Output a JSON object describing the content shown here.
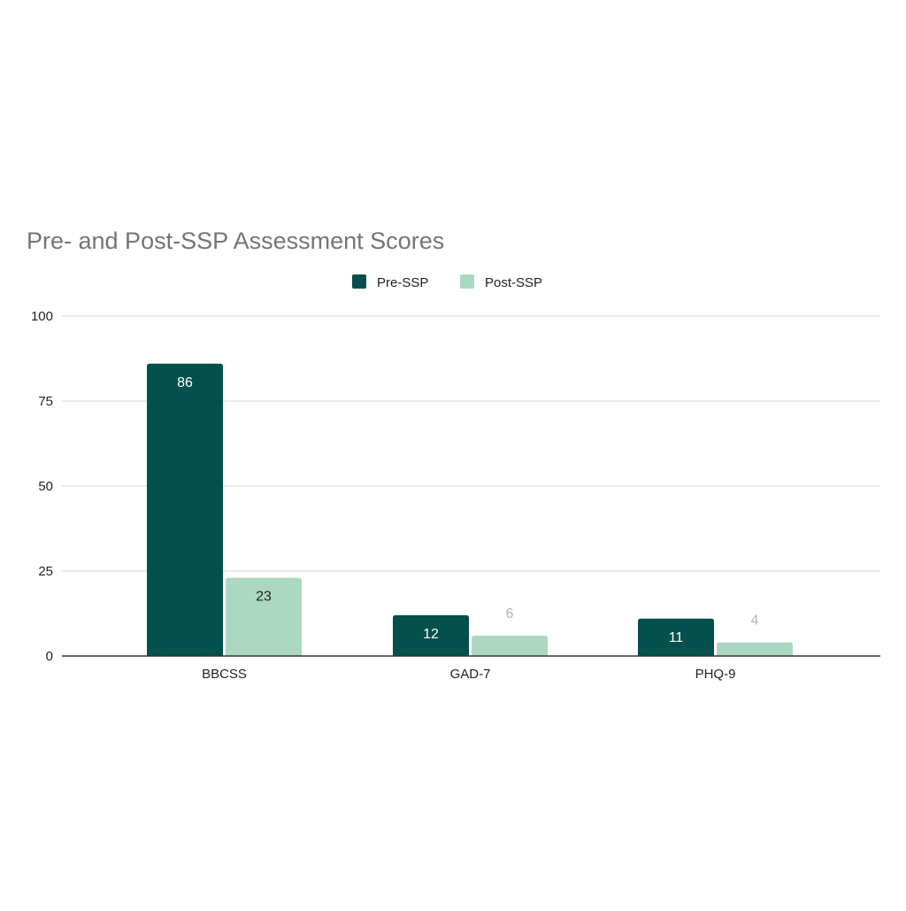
{
  "chart_data": {
    "type": "bar",
    "title": "Pre- and Post-SSP Assessment Scores",
    "xlabel": "",
    "ylabel": "",
    "categories": [
      "BBCSS",
      "GAD-7",
      "PHQ-9"
    ],
    "series": [
      {
        "name": "Pre-SSP",
        "values": [
          86,
          12,
          11
        ],
        "color": "#03504c"
      },
      {
        "name": "Post-SSP",
        "values": [
          23,
          6,
          4
        ],
        "color": "#acd8c1"
      }
    ],
    "ylim": [
      0,
      100
    ],
    "yticks": [
      0,
      25,
      50,
      75,
      100
    ],
    "grid": true,
    "legend": "top-center"
  }
}
